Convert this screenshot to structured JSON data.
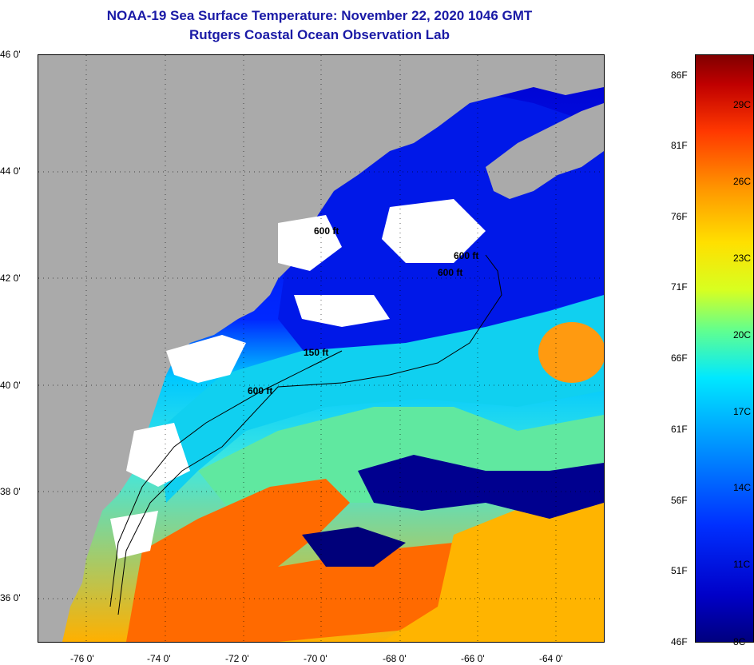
{
  "header": {
    "title_line1": "NOAA-19 Sea Surface Temperature:  November 22, 2020 1046 GMT",
    "title_line2": "Rutgers Coastal Ocean Observation Lab"
  },
  "axes": {
    "latitude_labels": [
      "46 0'",
      "44 0'",
      "42 0'",
      "40 0'",
      "38 0'",
      "36 0'"
    ],
    "longitude_labels": [
      "-76 0'",
      "-74 0'",
      "-72 0'",
      "-70 0'",
      "-68 0'",
      "-66 0'",
      "-64 0'"
    ],
    "lat_range": [
      35.0,
      46.0
    ],
    "lon_range": [
      -77.0,
      -62.5
    ]
  },
  "contours": {
    "labels": [
      "150 ft",
      "600 ft",
      "600 ft",
      "600 ft",
      "600 ft"
    ]
  },
  "colorbar": {
    "fahrenheit_labels": [
      "86F",
      "81F",
      "76F",
      "71F",
      "66F",
      "61F",
      "56F",
      "51F",
      "46F"
    ],
    "celsius_labels": [
      "29C",
      "26C",
      "23C",
      "20C",
      "17C",
      "14C",
      "11C",
      "8C"
    ],
    "range_celsius": [
      8,
      31
    ]
  },
  "colors": {
    "land": "#aaaaaa",
    "cloud": "#ffffff",
    "title_text": "#1a1aa6",
    "cold_water": "#0000c8",
    "warm_water": "#ff6a00"
  }
}
